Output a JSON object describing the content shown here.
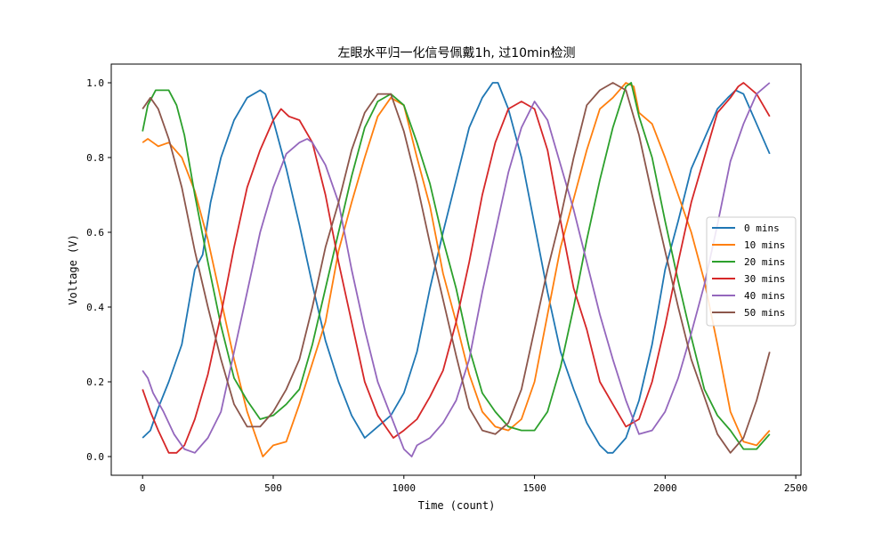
{
  "chart_data": {
    "type": "line",
    "title": "左眼水平归一化信号佩戴1h, 过10min检测",
    "xlabel": "Time (count)",
    "ylabel": "Voltage (V)",
    "xlim": [
      -120,
      2520
    ],
    "ylim": [
      -0.05,
      1.05
    ],
    "xticks": [
      0,
      500,
      1000,
      1500,
      2000,
      2500
    ],
    "yticks": [
      0.0,
      0.2,
      0.4,
      0.6,
      0.8,
      1.0
    ],
    "xtick_labels": [
      "0",
      "500",
      "1000",
      "1500",
      "2000",
      "2500"
    ],
    "ytick_labels": [
      "0.0",
      "0.2",
      "0.4",
      "0.6",
      "0.8",
      "1.0"
    ],
    "grid": false,
    "legend_position": "center-right",
    "series": [
      {
        "name": "0 mins",
        "color": "#1f77b4",
        "x": [
          0,
          30,
          60,
          100,
          150,
          200,
          230,
          260,
          300,
          350,
          400,
          450,
          470,
          500,
          550,
          600,
          650,
          700,
          750,
          800,
          850,
          900,
          950,
          1000,
          1050,
          1100,
          1150,
          1200,
          1250,
          1300,
          1340,
          1360,
          1400,
          1450,
          1500,
          1550,
          1600,
          1650,
          1700,
          1750,
          1780,
          1800,
          1850,
          1900,
          1950,
          2000,
          2050,
          2100,
          2150,
          2200,
          2240,
          2270,
          2300,
          2350,
          2400
        ],
        "y": [
          0.05,
          0.07,
          0.13,
          0.2,
          0.3,
          0.5,
          0.54,
          0.68,
          0.8,
          0.9,
          0.96,
          0.98,
          0.97,
          0.9,
          0.77,
          0.62,
          0.46,
          0.31,
          0.2,
          0.11,
          0.05,
          0.08,
          0.11,
          0.17,
          0.28,
          0.45,
          0.6,
          0.74,
          0.88,
          0.96,
          1.0,
          1.0,
          0.93,
          0.8,
          0.62,
          0.44,
          0.28,
          0.18,
          0.09,
          0.03,
          0.01,
          0.01,
          0.05,
          0.15,
          0.3,
          0.5,
          0.63,
          0.77,
          0.85,
          0.93,
          0.96,
          0.98,
          0.97,
          0.89,
          0.81
        ]
      },
      {
        "name": "10 mins",
        "color": "#ff7f0e",
        "x": [
          0,
          20,
          40,
          60,
          100,
          150,
          200,
          250,
          300,
          350,
          400,
          460,
          500,
          550,
          600,
          650,
          700,
          750,
          800,
          850,
          900,
          950,
          1000,
          1050,
          1100,
          1150,
          1200,
          1250,
          1300,
          1350,
          1400,
          1450,
          1500,
          1550,
          1600,
          1650,
          1700,
          1750,
          1800,
          1850,
          1880,
          1900,
          1950,
          2000,
          2050,
          2100,
          2150,
          2200,
          2250,
          2300,
          2350,
          2400
        ],
        "y": [
          0.84,
          0.85,
          0.84,
          0.83,
          0.84,
          0.8,
          0.71,
          0.58,
          0.42,
          0.26,
          0.12,
          0.0,
          0.03,
          0.04,
          0.14,
          0.25,
          0.36,
          0.55,
          0.68,
          0.8,
          0.91,
          0.96,
          0.94,
          0.8,
          0.67,
          0.49,
          0.36,
          0.22,
          0.12,
          0.08,
          0.07,
          0.1,
          0.2,
          0.38,
          0.56,
          0.69,
          0.82,
          0.93,
          0.96,
          1.0,
          0.99,
          0.92,
          0.89,
          0.8,
          0.7,
          0.6,
          0.47,
          0.3,
          0.12,
          0.04,
          0.03,
          0.07
        ]
      },
      {
        "name": "20 mins",
        "color": "#2ca02c",
        "x": [
          0,
          20,
          50,
          80,
          100,
          130,
          160,
          200,
          250,
          300,
          350,
          400,
          450,
          500,
          550,
          600,
          650,
          700,
          750,
          800,
          850,
          900,
          950,
          1000,
          1050,
          1100,
          1150,
          1200,
          1250,
          1300,
          1350,
          1400,
          1450,
          1500,
          1550,
          1600,
          1650,
          1700,
          1750,
          1800,
          1850,
          1870,
          1900,
          1950,
          2000,
          2050,
          2100,
          2150,
          2200,
          2250,
          2300,
          2350,
          2400
        ],
        "y": [
          0.87,
          0.94,
          0.98,
          0.98,
          0.98,
          0.94,
          0.86,
          0.7,
          0.52,
          0.35,
          0.21,
          0.15,
          0.1,
          0.11,
          0.14,
          0.18,
          0.3,
          0.45,
          0.6,
          0.75,
          0.88,
          0.95,
          0.97,
          0.94,
          0.84,
          0.73,
          0.58,
          0.45,
          0.29,
          0.17,
          0.12,
          0.08,
          0.07,
          0.07,
          0.12,
          0.24,
          0.4,
          0.58,
          0.74,
          0.88,
          0.99,
          1.0,
          0.91,
          0.8,
          0.63,
          0.47,
          0.32,
          0.18,
          0.11,
          0.07,
          0.02,
          0.02,
          0.06
        ]
      },
      {
        "name": "30 mins",
        "color": "#d62728",
        "x": [
          0,
          30,
          60,
          100,
          130,
          160,
          200,
          250,
          300,
          350,
          400,
          450,
          500,
          530,
          560,
          600,
          650,
          700,
          750,
          800,
          850,
          900,
          930,
          960,
          1000,
          1050,
          1100,
          1150,
          1200,
          1250,
          1300,
          1350,
          1400,
          1450,
          1500,
          1550,
          1600,
          1650,
          1700,
          1750,
          1800,
          1850,
          1900,
          1950,
          2000,
          2050,
          2100,
          2150,
          2200,
          2250,
          2280,
          2300,
          2350,
          2400
        ],
        "y": [
          0.18,
          0.12,
          0.07,
          0.01,
          0.01,
          0.03,
          0.1,
          0.22,
          0.38,
          0.56,
          0.72,
          0.82,
          0.9,
          0.93,
          0.91,
          0.9,
          0.84,
          0.7,
          0.52,
          0.36,
          0.2,
          0.11,
          0.08,
          0.05,
          0.07,
          0.1,
          0.16,
          0.23,
          0.36,
          0.52,
          0.7,
          0.84,
          0.93,
          0.95,
          0.93,
          0.82,
          0.63,
          0.45,
          0.34,
          0.2,
          0.14,
          0.08,
          0.1,
          0.2,
          0.35,
          0.52,
          0.68,
          0.8,
          0.92,
          0.96,
          0.99,
          1.0,
          0.97,
          0.91
        ]
      },
      {
        "name": "40 mins",
        "color": "#9467bd",
        "x": [
          0,
          20,
          40,
          80,
          120,
          160,
          200,
          250,
          300,
          350,
          400,
          450,
          500,
          550,
          600,
          630,
          650,
          700,
          750,
          800,
          850,
          900,
          950,
          1000,
          1030,
          1050,
          1100,
          1150,
          1200,
          1250,
          1300,
          1350,
          1400,
          1450,
          1500,
          1550,
          1600,
          1650,
          1700,
          1750,
          1800,
          1850,
          1900,
          1950,
          2000,
          2050,
          2100,
          2150,
          2200,
          2250,
          2300,
          2350,
          2400
        ],
        "y": [
          0.23,
          0.21,
          0.17,
          0.12,
          0.06,
          0.02,
          0.01,
          0.05,
          0.12,
          0.28,
          0.44,
          0.6,
          0.72,
          0.81,
          0.84,
          0.85,
          0.84,
          0.78,
          0.68,
          0.5,
          0.34,
          0.2,
          0.11,
          0.02,
          0.0,
          0.03,
          0.05,
          0.09,
          0.15,
          0.26,
          0.44,
          0.6,
          0.76,
          0.88,
          0.95,
          0.9,
          0.78,
          0.66,
          0.52,
          0.38,
          0.26,
          0.15,
          0.06,
          0.07,
          0.12,
          0.21,
          0.33,
          0.46,
          0.62,
          0.79,
          0.89,
          0.97,
          1.0
        ]
      },
      {
        "name": "50 mins",
        "color": "#8c564b",
        "x": [
          0,
          30,
          60,
          100,
          150,
          200,
          250,
          300,
          350,
          400,
          450,
          500,
          550,
          600,
          650,
          700,
          750,
          800,
          850,
          900,
          950,
          1000,
          1050,
          1100,
          1150,
          1200,
          1250,
          1300,
          1350,
          1400,
          1450,
          1500,
          1550,
          1600,
          1650,
          1700,
          1750,
          1800,
          1850,
          1900,
          1950,
          2000,
          2050,
          2100,
          2150,
          2200,
          2250,
          2300,
          2350,
          2400
        ],
        "y": [
          0.93,
          0.96,
          0.93,
          0.85,
          0.72,
          0.55,
          0.4,
          0.26,
          0.14,
          0.08,
          0.08,
          0.12,
          0.18,
          0.26,
          0.4,
          0.56,
          0.68,
          0.82,
          0.92,
          0.97,
          0.97,
          0.87,
          0.73,
          0.57,
          0.42,
          0.27,
          0.13,
          0.07,
          0.06,
          0.09,
          0.18,
          0.34,
          0.5,
          0.64,
          0.8,
          0.94,
          0.98,
          1.0,
          0.98,
          0.86,
          0.7,
          0.55,
          0.4,
          0.26,
          0.16,
          0.06,
          0.01,
          0.05,
          0.15,
          0.28
        ]
      }
    ]
  }
}
